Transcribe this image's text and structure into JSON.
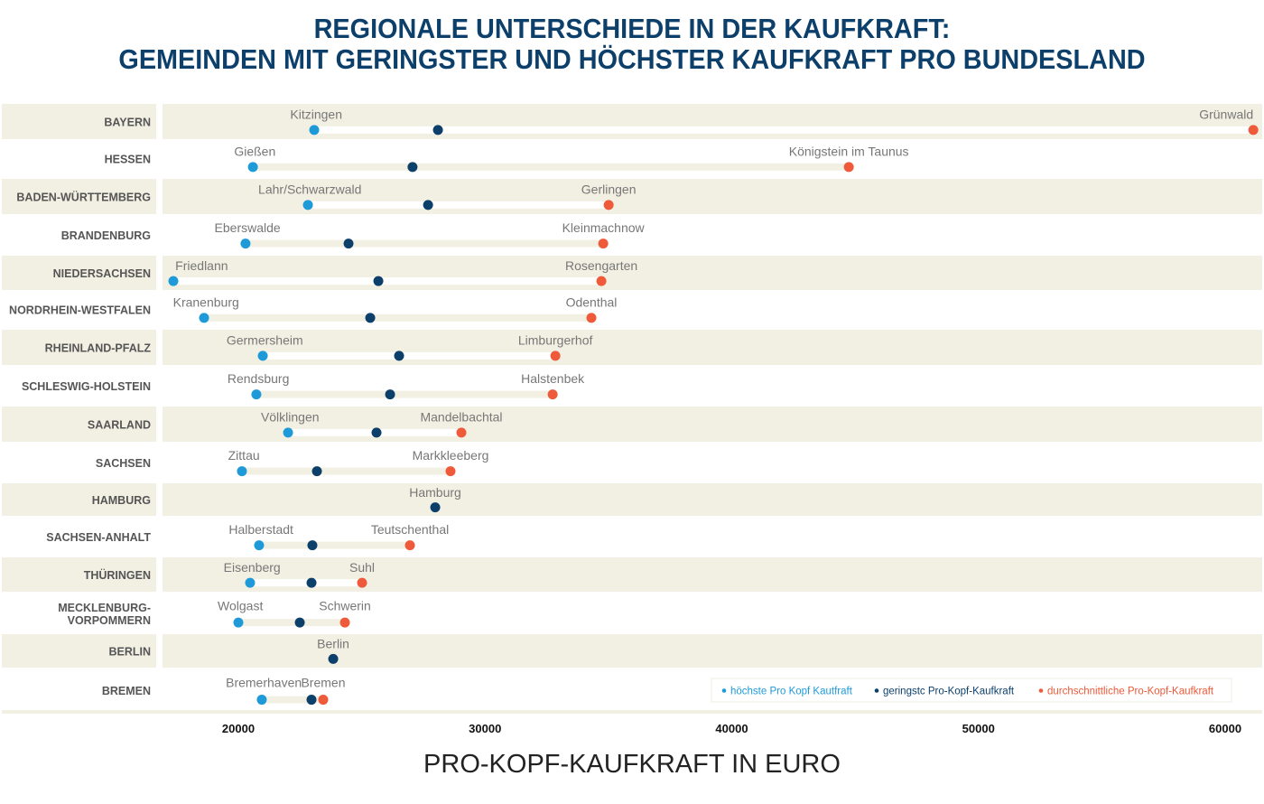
{
  "chart_data": {
    "type": "dumbbell",
    "title_line1": "REGIONALE UNTERSCHIEDE IN DER KAUFKRAFT:",
    "title_line2": "GEMEINDEN MIT GERINGSTER UND HÖCHSTER KAUFKRAFT PRO BUNDESLAND",
    "xlabel": "PRO-KOPF-KAUFKRAFT IN EURO",
    "xticks": [
      20000,
      30000,
      40000,
      50000,
      60000
    ],
    "xlim": [
      16900,
      61300
    ],
    "legend": {
      "position": "bottom-right",
      "items": [
        {
          "label": "höchste Pro Kopf Kautfraft",
          "color": "#1e9ad9"
        },
        {
          "label": "geringstc Pro-Kopf-Kaufkraft",
          "color": "#0d3f6b"
        },
        {
          "label": "durchschnittliche Pro-Kopf-Kaufkraft",
          "color": "#ee5a3a"
        }
      ]
    },
    "colors": {
      "low": "#1e9ad9",
      "avg": "#0d3f6b",
      "high": "#ee5a3a",
      "band": "#f2f0e3",
      "track": "#f2f0e3"
    },
    "rows": [
      {
        "state": "BAYERN",
        "low": 23075,
        "low_label": "Kitzingen",
        "avg": 28090,
        "high": 61140,
        "high_label": "Grünwald"
      },
      {
        "state": "HESSEN",
        "low": 20590,
        "low_label": "Gießen",
        "avg": 27060,
        "high": 44745,
        "high_label": "Königstein im Taunus"
      },
      {
        "state": "BADEN-WÜRTTEMBERG",
        "low": 22820,
        "low_label": "Lahr/Schwarzwald",
        "avg": 27690,
        "high": 35010,
        "high_label": "Gerlingen"
      },
      {
        "state": "BRANDENBURG",
        "low": 20290,
        "low_label": "Eberswalde",
        "avg": 24465,
        "high": 34790,
        "high_label": "Kleinmachnow"
      },
      {
        "state": "NIEDERSACHSEN",
        "low": 17365,
        "low_label": "Friedlann",
        "avg": 25675,
        "high": 34715,
        "high_label": "Rosengarten"
      },
      {
        "state": "NORDRHEIN-WESTFALEN",
        "low": 18610,
        "low_label": "Kranenburg",
        "avg": 25345,
        "high": 34310,
        "high_label": "Odenthal"
      },
      {
        "state": "RHEINLAND-PFALZ",
        "low": 20990,
        "low_label": "Germersheim",
        "avg": 26515,
        "high": 32850,
        "high_label": "Limburgerhof"
      },
      {
        "state": "SCHLESWIG-HOLSTEIN",
        "low": 20730,
        "low_label": "Rendsburg",
        "avg": 26150,
        "high": 32740,
        "high_label": "Halstenbek"
      },
      {
        "state": "SAARLAND",
        "low": 22015,
        "low_label": "Völklingen",
        "avg": 25600,
        "high": 29040,
        "high_label": "Mandelbachtal"
      },
      {
        "state": "SACHSEN",
        "low": 20145,
        "low_label": "Zittau",
        "avg": 23185,
        "high": 28600,
        "high_label": "Markkleeberg"
      },
      {
        "state": "HAMBURG",
        "low": null,
        "low_label": "",
        "avg": 27980,
        "avg_label": "Hamburg",
        "high": null,
        "high_label": ""
      },
      {
        "state": "SACHSEN-ANHALT",
        "low": 20840,
        "low_label": "Halberstadt",
        "avg": 23000,
        "high": 26955,
        "high_label": "Teutschenthal"
      },
      {
        "state": "THÜRINGEN",
        "low": 20475,
        "low_label": "Eisenberg",
        "avg": 22965,
        "high": 25015,
        "high_label": "Suhl"
      },
      {
        "state": "MECKLENBURG-\nVORPOMMERN",
        "low": 20000,
        "low_label": "Wolgast",
        "avg": 22490,
        "high": 24320,
        "high_label": "Schwerin"
      },
      {
        "state": "BERLIN",
        "low": null,
        "low_label": "",
        "avg": 23845,
        "avg_label": "Berlin",
        "high": null,
        "high_label": ""
      },
      {
        "state": "BREMEN",
        "low": 20950,
        "low_label": "Bremerhaven",
        "avg": 22965,
        "high": 23440,
        "high_label": "Bremen"
      }
    ]
  }
}
